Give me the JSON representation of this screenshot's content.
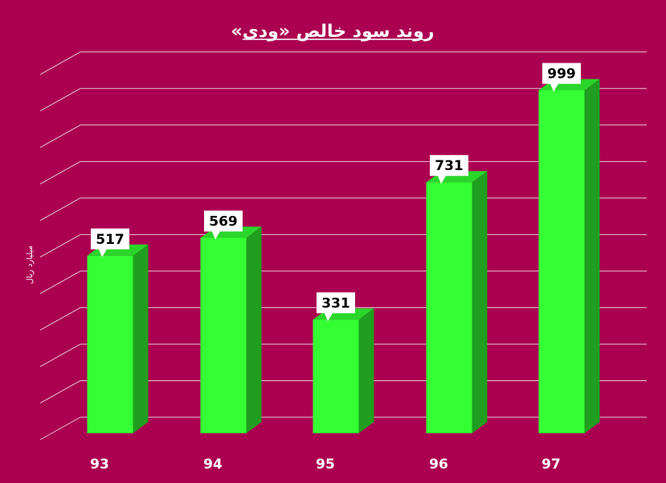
{
  "chart_data": {
    "type": "bar",
    "title": "روند سود خالص «ودی»",
    "ylabel": "میلیارد ریال",
    "xlabel": "",
    "categories": [
      "93",
      "94",
      "95",
      "96",
      "97"
    ],
    "values": [
      517,
      569,
      331,
      731,
      999
    ],
    "ylim": [
      0,
      1050
    ],
    "grid": true,
    "legend": "none",
    "data_labels": true,
    "style_3d": true
  },
  "colors": {
    "background": "#ab0051",
    "bar_front": "#33ff33",
    "bar_side": "#1f9e1f",
    "bar_top": "#2bd62b",
    "grid": "#e8c4d6",
    "label_box": "#ffffff",
    "text": "#ffffff"
  }
}
